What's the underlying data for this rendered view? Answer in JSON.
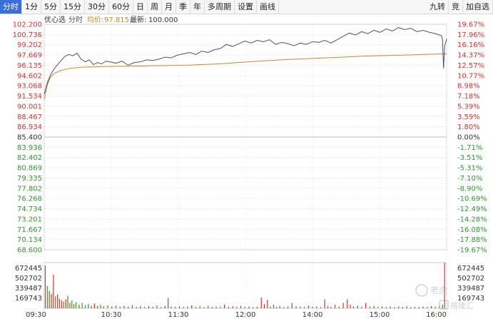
{
  "toolbar": {
    "periods": [
      "分时",
      "1分",
      "5分",
      "15分",
      "30分",
      "60分",
      "日",
      "周",
      "月",
      "季",
      "年",
      "多周期"
    ],
    "active_period": 0,
    "settings": "设置",
    "draw_line": "画线",
    "jiuzhuan": "九转",
    "jing": "竞",
    "add_watch": "加自选"
  },
  "legend": {
    "watch": "优心选",
    "time_label": "分时",
    "avg_label": "均价:",
    "avg_value": "97.815",
    "latest_label": "最新:",
    "latest_value": "100.000"
  },
  "watermark": {
    "name": "老虎",
    "brand": "格隆汇"
  },
  "colors": {
    "up": "#e0302a",
    "down": "#2a9a2a",
    "price_line": "#4a5170",
    "avg_line": "#c9882a",
    "neutral_axis": "#333333"
  },
  "chart_data": {
    "type": "line",
    "base_price": 85.4,
    "y_left_ticks": [
      "102.200",
      "100.736",
      "99.202",
      "97.669",
      "96.135",
      "94.602",
      "93.068",
      "91.534",
      "90.001",
      "88.467",
      "86.934",
      "85.400",
      "83.936",
      "82.402",
      "80.869",
      "79.335",
      "77.802",
      "76.268",
      "74.734",
      "73.201",
      "71.667",
      "70.134",
      "68.600"
    ],
    "y_right_ticks": [
      "19.67%",
      "17.96%",
      "16.16%",
      "14.37%",
      "12.57%",
      "10.77%",
      "8.98%",
      "7.18%",
      "5.39%",
      "3.59%",
      "1.80%",
      "0.00%",
      "-1.71%",
      "-3.51%",
      "-5.31%",
      "-7.10%",
      "-8.90%",
      "-10.69%",
      "-12.49%",
      "-14.28%",
      "-16.08%",
      "-17.88%",
      "-19.67%"
    ],
    "x_ticks": [
      "09:30",
      "10:30",
      "11:30",
      "12:00",
      "14:00",
      "15:00",
      "16:00"
    ],
    "ylim": [
      68.6,
      102.2
    ],
    "price": [
      [
        0,
        91.8
      ],
      [
        3,
        93.5
      ],
      [
        6,
        94.6
      ],
      [
        9,
        95.4
      ],
      [
        12,
        96.0
      ],
      [
        16,
        96.7
      ],
      [
        20,
        97.4
      ],
      [
        24,
        97.7
      ],
      [
        28,
        97.5
      ],
      [
        32,
        97.9
      ],
      [
        36,
        97.0
      ],
      [
        40,
        96.6
      ],
      [
        44,
        96.9
      ],
      [
        48,
        96.2
      ],
      [
        52,
        96.5
      ],
      [
        56,
        96.3
      ],
      [
        60,
        96.7
      ],
      [
        64,
        96.6
      ],
      [
        70,
        96.4
      ],
      [
        76,
        96.7
      ],
      [
        82,
        96.1
      ],
      [
        88,
        96.5
      ],
      [
        94,
        96.6
      ],
      [
        100,
        96.9
      ],
      [
        106,
        96.8
      ],
      [
        112,
        97.0
      ],
      [
        118,
        97.3
      ],
      [
        124,
        97.2
      ],
      [
        130,
        97.6
      ],
      [
        136,
        97.8
      ],
      [
        142,
        98.0
      ],
      [
        148,
        97.7
      ],
      [
        154,
        98.2
      ],
      [
        160,
        98.0
      ],
      [
        166,
        98.4
      ],
      [
        172,
        98.6
      ],
      [
        178,
        99.2
      ],
      [
        184,
        98.9
      ],
      [
        190,
        99.3
      ],
      [
        196,
        99.7
      ],
      [
        202,
        99.4
      ],
      [
        208,
        99.8
      ],
      [
        214,
        99.6
      ],
      [
        220,
        99.9
      ],
      [
        226,
        99.2
      ],
      [
        232,
        99.5
      ],
      [
        238,
        99.3
      ],
      [
        244,
        99.0
      ],
      [
        250,
        99.4
      ],
      [
        256,
        99.2
      ],
      [
        262,
        99.6
      ],
      [
        268,
        99.5
      ],
      [
        274,
        99.8
      ],
      [
        280,
        99.4
      ],
      [
        286,
        99.9
      ],
      [
        292,
        100.4
      ],
      [
        298,
        100.9
      ],
      [
        304,
        100.6
      ],
      [
        310,
        101.1
      ],
      [
        316,
        100.8
      ],
      [
        322,
        101.3
      ],
      [
        328,
        101.0
      ],
      [
        334,
        101.5
      ],
      [
        340,
        101.2
      ],
      [
        346,
        101.7
      ],
      [
        352,
        101.4
      ],
      [
        358,
        101.6
      ],
      [
        364,
        101.1
      ],
      [
        370,
        101.3
      ],
      [
        376,
        101.0
      ],
      [
        382,
        100.8
      ],
      [
        388,
        100.5
      ],
      [
        389,
        99.9
      ],
      [
        390,
        95.6
      ],
      [
        391,
        98.9
      ],
      [
        393,
        100.0
      ]
    ],
    "avg": [
      [
        0,
        91.0
      ],
      [
        3,
        93.2
      ],
      [
        6,
        94.3
      ],
      [
        10,
        94.9
      ],
      [
        16,
        95.3
      ],
      [
        24,
        95.6
      ],
      [
        36,
        95.8
      ],
      [
        60,
        95.9
      ],
      [
        100,
        96.0
      ],
      [
        140,
        96.1
      ],
      [
        170,
        96.3
      ],
      [
        200,
        96.6
      ],
      [
        230,
        96.9
      ],
      [
        260,
        97.1
      ],
      [
        290,
        97.3
      ],
      [
        320,
        97.5
      ],
      [
        350,
        97.6
      ],
      [
        380,
        97.75
      ],
      [
        393,
        97.8
      ]
    ],
    "volume_ticks": [
      "672445",
      "502702",
      "339487",
      "169743"
    ],
    "volume_max": 760000,
    "volume": [
      {
        "t": 1,
        "v": 710000,
        "up": 1
      },
      {
        "t": 3,
        "v": 370000,
        "up": 0
      },
      {
        "t": 5,
        "v": 290000,
        "up": 1
      },
      {
        "t": 7,
        "v": 240000,
        "up": 1
      },
      {
        "t": 9,
        "v": 560000,
        "up": 1
      },
      {
        "t": 11,
        "v": 200000,
        "up": 0
      },
      {
        "t": 13,
        "v": 230000,
        "up": 1
      },
      {
        "t": 15,
        "v": 160000,
        "up": 1
      },
      {
        "t": 17,
        "v": 130000,
        "up": 1
      },
      {
        "t": 19,
        "v": 110000,
        "up": 0
      },
      {
        "t": 21,
        "v": 150000,
        "up": 1
      },
      {
        "t": 23,
        "v": 210000,
        "up": 0
      },
      {
        "t": 25,
        "v": 90000,
        "up": 1
      },
      {
        "t": 27,
        "v": 130000,
        "up": 0
      },
      {
        "t": 29,
        "v": 70000,
        "up": 1
      },
      {
        "t": 31,
        "v": 100000,
        "up": 0
      },
      {
        "t": 34,
        "v": 60000,
        "up": 1
      },
      {
        "t": 37,
        "v": 90000,
        "up": 0
      },
      {
        "t": 40,
        "v": 55000,
        "up": 0
      },
      {
        "t": 43,
        "v": 70000,
        "up": 1
      },
      {
        "t": 46,
        "v": 45000,
        "up": 0
      },
      {
        "t": 49,
        "v": 80000,
        "up": 1
      },
      {
        "t": 52,
        "v": 40000,
        "up": 0
      },
      {
        "t": 55,
        "v": 60000,
        "up": 0
      },
      {
        "t": 58,
        "v": 35000,
        "up": 1
      },
      {
        "t": 62,
        "v": 50000,
        "up": 0
      },
      {
        "t": 66,
        "v": 30000,
        "up": 1
      },
      {
        "t": 70,
        "v": 45000,
        "up": 0
      },
      {
        "t": 74,
        "v": 28000,
        "up": 0
      },
      {
        "t": 78,
        "v": 40000,
        "up": 1
      },
      {
        "t": 82,
        "v": 30000,
        "up": 0
      },
      {
        "t": 86,
        "v": 55000,
        "up": 1
      },
      {
        "t": 90,
        "v": 25000,
        "up": 0
      },
      {
        "t": 94,
        "v": 38000,
        "up": 1
      },
      {
        "t": 98,
        "v": 22000,
        "up": 0
      },
      {
        "t": 102,
        "v": 35000,
        "up": 1
      },
      {
        "t": 106,
        "v": 28000,
        "up": 0
      },
      {
        "t": 110,
        "v": 45000,
        "up": 1
      },
      {
        "t": 114,
        "v": 20000,
        "up": 0
      },
      {
        "t": 118,
        "v": 40000,
        "up": 1
      },
      {
        "t": 121,
        "v": 170000,
        "up": 1
      },
      {
        "t": 124,
        "v": 30000,
        "up": 0
      },
      {
        "t": 128,
        "v": 25000,
        "up": 1
      },
      {
        "t": 132,
        "v": 38000,
        "up": 0
      },
      {
        "t": 136,
        "v": 22000,
        "up": 1
      },
      {
        "t": 140,
        "v": 30000,
        "up": 0
      },
      {
        "t": 144,
        "v": 50000,
        "up": 1
      },
      {
        "t": 148,
        "v": 26000,
        "up": 0
      },
      {
        "t": 152,
        "v": 35000,
        "up": 1
      },
      {
        "t": 156,
        "v": 20000,
        "up": 0
      },
      {
        "t": 160,
        "v": 42000,
        "up": 1
      },
      {
        "t": 164,
        "v": 25000,
        "up": 0
      },
      {
        "t": 168,
        "v": 30000,
        "up": 1
      },
      {
        "t": 172,
        "v": 24000,
        "up": 0
      },
      {
        "t": 176,
        "v": 60000,
        "up": 1
      },
      {
        "t": 180,
        "v": 28000,
        "up": 0
      },
      {
        "t": 184,
        "v": 35000,
        "up": 1
      },
      {
        "t": 188,
        "v": 22000,
        "up": 0
      },
      {
        "t": 192,
        "v": 40000,
        "up": 1
      },
      {
        "t": 196,
        "v": 26000,
        "up": 0
      },
      {
        "t": 200,
        "v": 30000,
        "up": 1
      },
      {
        "t": 204,
        "v": 20000,
        "up": 0
      },
      {
        "t": 208,
        "v": 24000,
        "up": 1
      },
      {
        "t": 212,
        "v": 180000,
        "up": 1
      },
      {
        "t": 215,
        "v": 70000,
        "up": 1
      },
      {
        "t": 218,
        "v": 140000,
        "up": 1
      },
      {
        "t": 221,
        "v": 30000,
        "up": 0
      },
      {
        "t": 224,
        "v": 60000,
        "up": 1
      },
      {
        "t": 227,
        "v": 25000,
        "up": 0
      },
      {
        "t": 230,
        "v": 40000,
        "up": 1
      },
      {
        "t": 234,
        "v": 20000,
        "up": 0
      },
      {
        "t": 238,
        "v": 30000,
        "up": 1
      },
      {
        "t": 242,
        "v": 90000,
        "up": 1
      },
      {
        "t": 246,
        "v": 35000,
        "up": 0
      },
      {
        "t": 250,
        "v": 28000,
        "up": 1
      },
      {
        "t": 254,
        "v": 22000,
        "up": 0
      },
      {
        "t": 258,
        "v": 45000,
        "up": 1
      },
      {
        "t": 262,
        "v": 26000,
        "up": 0
      },
      {
        "t": 266,
        "v": 30000,
        "up": 1
      },
      {
        "t": 270,
        "v": 20000,
        "up": 0
      },
      {
        "t": 274,
        "v": 150000,
        "up": 1
      },
      {
        "t": 277,
        "v": 40000,
        "up": 1
      },
      {
        "t": 280,
        "v": 25000,
        "up": 0
      },
      {
        "t": 284,
        "v": 60000,
        "up": 1
      },
      {
        "t": 288,
        "v": 30000,
        "up": 0
      },
      {
        "t": 292,
        "v": 90000,
        "up": 1
      },
      {
        "t": 296,
        "v": 150000,
        "up": 1
      },
      {
        "t": 299,
        "v": 60000,
        "up": 1
      },
      {
        "t": 302,
        "v": 35000,
        "up": 0
      },
      {
        "t": 306,
        "v": 45000,
        "up": 1
      },
      {
        "t": 310,
        "v": 28000,
        "up": 0
      },
      {
        "t": 314,
        "v": 90000,
        "up": 1
      },
      {
        "t": 318,
        "v": 30000,
        "up": 0
      },
      {
        "t": 322,
        "v": 40000,
        "up": 1
      },
      {
        "t": 326,
        "v": 26000,
        "up": 0
      },
      {
        "t": 330,
        "v": 35000,
        "up": 1
      },
      {
        "t": 334,
        "v": 22000,
        "up": 0
      },
      {
        "t": 338,
        "v": 30000,
        "up": 1
      },
      {
        "t": 342,
        "v": 20000,
        "up": 0
      },
      {
        "t": 346,
        "v": 28000,
        "up": 1
      },
      {
        "t": 350,
        "v": 24000,
        "up": 0
      },
      {
        "t": 354,
        "v": 32000,
        "up": 1
      },
      {
        "t": 358,
        "v": 20000,
        "up": 0
      },
      {
        "t": 362,
        "v": 26000,
        "up": 1
      },
      {
        "t": 366,
        "v": 22000,
        "up": 0
      },
      {
        "t": 370,
        "v": 30000,
        "up": 1
      },
      {
        "t": 374,
        "v": 24000,
        "up": 0
      },
      {
        "t": 378,
        "v": 35000,
        "up": 1
      },
      {
        "t": 382,
        "v": 28000,
        "up": 0
      },
      {
        "t": 386,
        "v": 40000,
        "up": 1
      },
      {
        "t": 389,
        "v": 60000,
        "up": 0
      },
      {
        "t": 391,
        "v": 760000,
        "up": 1
      }
    ]
  }
}
